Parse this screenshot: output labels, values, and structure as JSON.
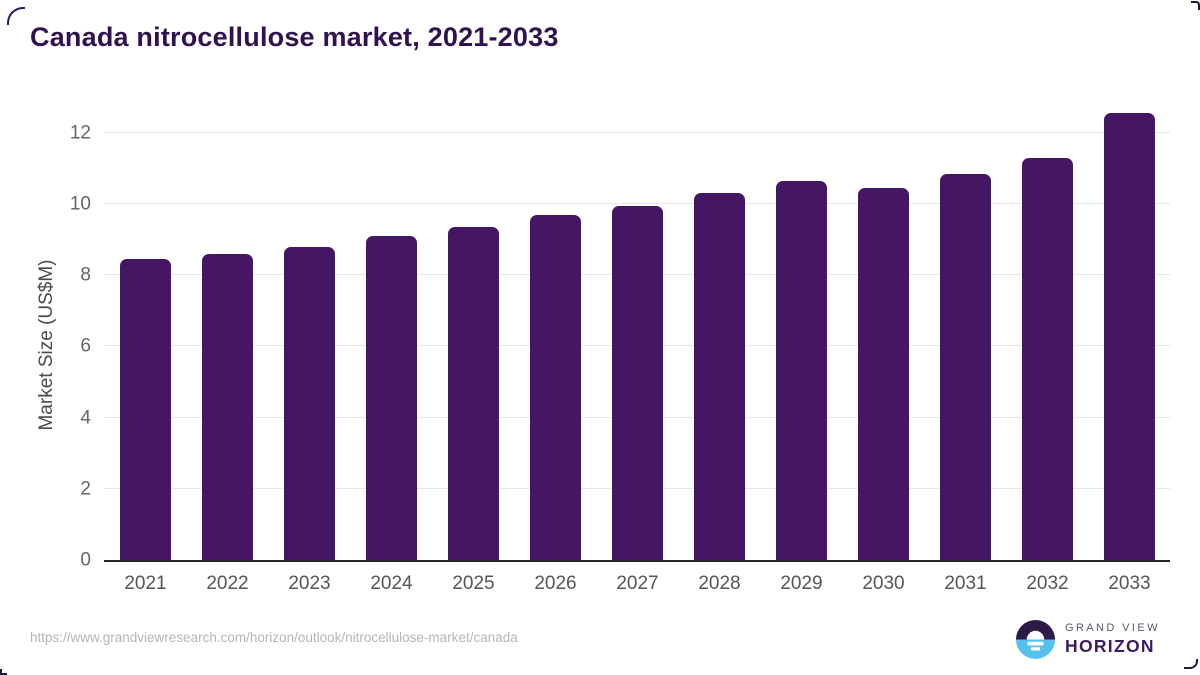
{
  "title": "Canada nitrocellulose market, 2021-2033",
  "source_url": "https://www.grandviewresearch.com/horizon/outlook/nitrocellulose-market/canada",
  "logo": {
    "line1": "GRAND VIEW",
    "line2": "HORIZON"
  },
  "colors": {
    "bar": "#451663",
    "title_text": "#311150",
    "axis_title_text": "#4a4a4a",
    "tick_label_text": "#666666",
    "x_label_text": "#555555",
    "gridline": "#e7e7e7",
    "baseline": "#262626",
    "url_text": "#b5b5b5",
    "logo_purple": "#2e1a47",
    "logo_blue": "#56c1ef",
    "logo_text_gray": "#5e5768",
    "logo_text_purple": "#3b1b5e"
  },
  "chart_data": {
    "type": "bar",
    "title": "Canada nitrocellulose market, 2021-2033",
    "categories": [
      "2021",
      "2022",
      "2023",
      "2024",
      "2025",
      "2026",
      "2027",
      "2028",
      "2029",
      "2030",
      "2031",
      "2032",
      "2033"
    ],
    "values": [
      8.45,
      8.6,
      8.8,
      9.1,
      9.35,
      9.7,
      9.95,
      10.3,
      10.65,
      10.45,
      10.85,
      11.3,
      12.55
    ],
    "xlabel": "",
    "ylabel": "Market Size (US$M)",
    "ylim": [
      0,
      13
    ],
    "yticks": [
      0,
      2,
      4,
      6,
      8,
      10,
      12
    ],
    "grid": true,
    "legend_position": "none",
    "bar_color": "#451663"
  }
}
